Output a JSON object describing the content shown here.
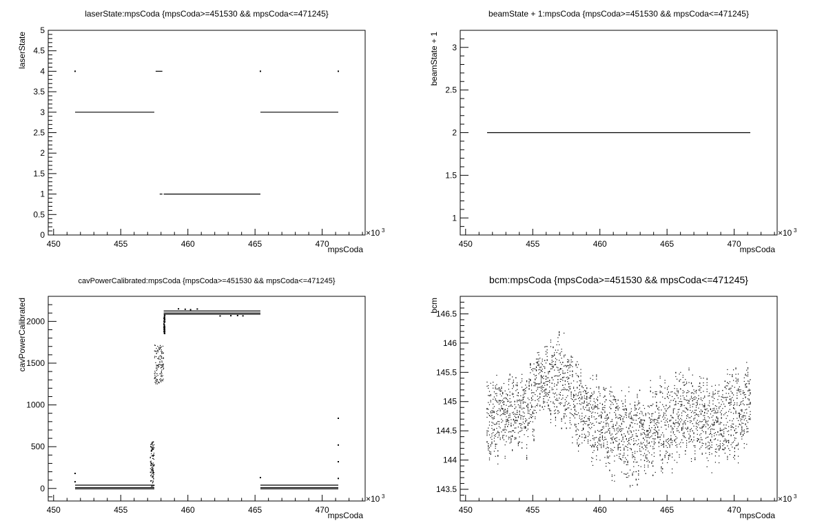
{
  "chart_data": [
    {
      "type": "scatter",
      "title": "laserState:mpsCoda {mpsCoda>=451530 && mpsCoda<=471245}",
      "xlabel": "mpsCoda",
      "ylabel": "laserState",
      "x_exponent": "×10",
      "x_exponent_power": "3",
      "xlim": [
        449.6,
        473.2
      ],
      "ylim": [
        0,
        5
      ],
      "xticks": [
        "450",
        "455",
        "460",
        "465",
        "470"
      ],
      "yticks": [
        "0",
        "0.5",
        "1",
        "1.5",
        "2",
        "2.5",
        "3",
        "3.5",
        "4",
        "4.5",
        "5"
      ],
      "segments": [
        {
          "x0": 451.6,
          "x1": 457.5,
          "y": 3
        },
        {
          "x0": 457.6,
          "x1": 458.1,
          "y": 4
        },
        {
          "x0": 457.9,
          "x1": 458.1,
          "y": 1
        },
        {
          "x0": 458.2,
          "x1": 465.4,
          "y": 1
        },
        {
          "x0": 465.4,
          "x1": 471.2,
          "y": 3
        }
      ],
      "points": [
        {
          "x": 451.6,
          "y": 4
        },
        {
          "x": 465.4,
          "y": 4
        },
        {
          "x": 471.2,
          "y": 4
        }
      ]
    },
    {
      "type": "scatter",
      "title": "beamState + 1:mpsCoda {mpsCoda>=451530 && mpsCoda<=471245}",
      "xlabel": "mpsCoda",
      "ylabel": "beamState + 1",
      "x_exponent": "×10",
      "x_exponent_power": "3",
      "xlim": [
        449.6,
        473.2
      ],
      "ylim": [
        0.8,
        3.2
      ],
      "xticks": [
        "450",
        "455",
        "460",
        "465",
        "470"
      ],
      "yticks": [
        "1",
        "1.5",
        "2",
        "2.5",
        "3"
      ],
      "segments": [
        {
          "x0": 451.6,
          "x1": 471.2,
          "y": 2
        }
      ],
      "points": []
    },
    {
      "type": "scatter",
      "title": "cavPowerCalibrated:mpsCoda {mpsCoda>=451530 && mpsCoda<=471245}",
      "xlabel": "mpsCoda",
      "ylabel": "cavPowerCalibrated",
      "x_exponent": "×10",
      "x_exponent_power": "3",
      "xlim": [
        449.6,
        473.2
      ],
      "ylim": [
        -150,
        2300
      ],
      "xticks": [
        "450",
        "455",
        "460",
        "465",
        "470"
      ],
      "yticks": [
        "0",
        "500",
        "1000",
        "1500",
        "2000"
      ],
      "segments": [
        {
          "x0": 451.6,
          "x1": 457.5,
          "y": 40
        },
        {
          "x0": 451.6,
          "x1": 457.5,
          "y": 10
        },
        {
          "x0": 451.6,
          "x1": 457.5,
          "y": -5
        },
        {
          "x0": 465.4,
          "x1": 471.2,
          "y": 40
        },
        {
          "x0": 465.4,
          "x1": 471.2,
          "y": 10
        },
        {
          "x0": 465.4,
          "x1": 471.2,
          "y": -5
        },
        {
          "x0": 458.2,
          "x1": 465.4,
          "y": 2125
        },
        {
          "x0": 458.2,
          "x1": 465.4,
          "y": 2100
        },
        {
          "x0": 458.2,
          "x1": 465.4,
          "y": 2085
        }
      ],
      "points": [
        {
          "x": 451.6,
          "y": 180
        },
        {
          "x": 451.6,
          "y": 80
        },
        {
          "x": 459.3,
          "y": 2150
        },
        {
          "x": 459.8,
          "y": 2145
        },
        {
          "x": 460.2,
          "y": 2140
        },
        {
          "x": 460.7,
          "y": 2148
        },
        {
          "x": 462.4,
          "y": 2065
        },
        {
          "x": 463.2,
          "y": 2068
        },
        {
          "x": 463.7,
          "y": 2070
        },
        {
          "x": 464.1,
          "y": 2066
        },
        {
          "x": 471.2,
          "y": 840
        },
        {
          "x": 471.2,
          "y": 520
        },
        {
          "x": 471.2,
          "y": 320
        },
        {
          "x": 471.2,
          "y": 120
        },
        {
          "x": 465.4,
          "y": 130
        }
      ],
      "bands": [
        {
          "x0": 457.2,
          "x1": 457.5,
          "ymin": 20,
          "ymax": 560
        },
        {
          "x0": 457.5,
          "x1": 458.2,
          "ymin": 1250,
          "ymax": 1720
        },
        {
          "x0": 458.2,
          "x1": 458.3,
          "ymin": 1850,
          "ymax": 2080
        }
      ]
    },
    {
      "type": "scatter",
      "title": "bcm:mpsCoda {mpsCoda>=451530 && mpsCoda<=471245}",
      "xlabel": "mpsCoda",
      "ylabel": "bcm",
      "x_exponent": "×10",
      "x_exponent_power": "3",
      "xlim": [
        449.6,
        473.2
      ],
      "ylim": [
        143.3,
        146.8
      ],
      "xticks": [
        "450",
        "455",
        "460",
        "465",
        "470"
      ],
      "yticks": [
        "143.5",
        "144",
        "144.5",
        "145",
        "145.5",
        "146",
        "146.5"
      ],
      "x_range": [
        451.6,
        471.2
      ],
      "center_profile": [
        {
          "x": 451.6,
          "y": 144.75
        },
        {
          "x": 453.0,
          "y": 144.8
        },
        {
          "x": 454.5,
          "y": 144.85
        },
        {
          "x": 455.5,
          "y": 145.3
        },
        {
          "x": 457.0,
          "y": 145.4
        },
        {
          "x": 458.0,
          "y": 145.1
        },
        {
          "x": 459.0,
          "y": 144.8
        },
        {
          "x": 460.5,
          "y": 144.5
        },
        {
          "x": 462.5,
          "y": 144.35
        },
        {
          "x": 464.0,
          "y": 144.55
        },
        {
          "x": 466.0,
          "y": 144.8
        },
        {
          "x": 468.0,
          "y": 144.65
        },
        {
          "x": 469.5,
          "y": 144.75
        },
        {
          "x": 471.2,
          "y": 144.9
        }
      ],
      "spread": 0.55
    }
  ]
}
